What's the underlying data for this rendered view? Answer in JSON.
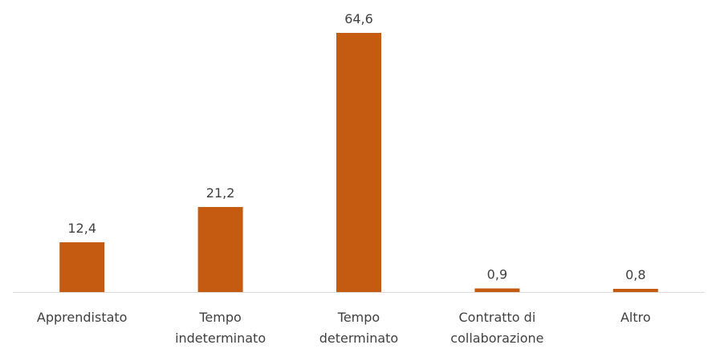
{
  "chart_data": {
    "type": "bar",
    "categories": [
      [
        "Apprendistato"
      ],
      [
        "Tempo",
        "indeterminato"
      ],
      [
        "Tempo",
        "determinato"
      ],
      [
        "Contratto di",
        "collaborazione"
      ],
      [
        "Altro"
      ]
    ],
    "values": [
      12.4,
      21.2,
      64.6,
      0.9,
      0.8
    ],
    "value_labels": [
      "12,4",
      "21,2",
      "64,6",
      "0,9",
      "0,8"
    ],
    "title": "",
    "xlabel": "",
    "ylabel": "",
    "ylim": [
      0,
      70
    ],
    "grid": false,
    "legend": "none",
    "bar_color": "#C55A11",
    "axis_color": "#D9D9D9",
    "text_color": "#404040"
  }
}
